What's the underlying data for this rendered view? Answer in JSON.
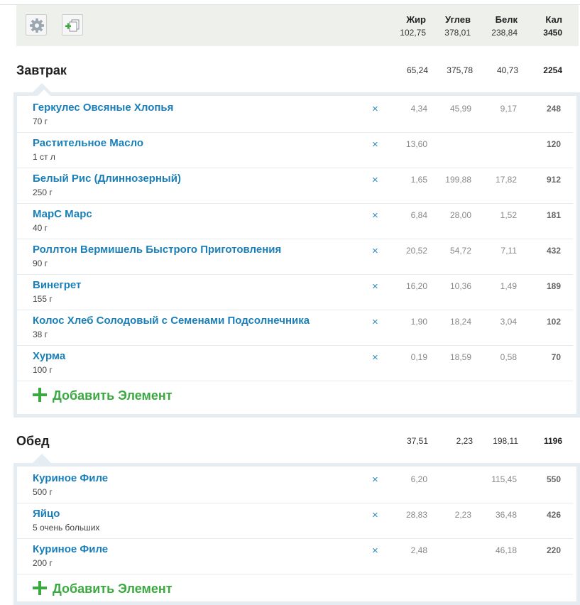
{
  "toolbar": {
    "settings_icon": "gear-icon",
    "copy_icon": "add-copy-icon",
    "columns": [
      {
        "label": "Жир",
        "value": "102,75"
      },
      {
        "label": "Углев",
        "value": "378,01"
      },
      {
        "label": "Белк",
        "value": "238,84"
      },
      {
        "label": "Кал",
        "value": "3450"
      }
    ]
  },
  "meals": [
    {
      "title": "Завтрак",
      "totals": [
        "65,24",
        "375,78",
        "40,73",
        "2254"
      ],
      "items": [
        {
          "name": "Геркулес Овсяные Хлопья",
          "amount": "70 г",
          "fat": "4,34",
          "carb": "45,99",
          "prot": "9,17",
          "kcal": "248"
        },
        {
          "name": "Растительное Масло",
          "amount": "1 ст л",
          "fat": "13,60",
          "carb": "",
          "prot": "",
          "kcal": "120"
        },
        {
          "name": "Белый Рис (Длиннозерный)",
          "amount": "250 г",
          "fat": "1,65",
          "carb": "199,88",
          "prot": "17,82",
          "kcal": "912"
        },
        {
          "name": "МарС Марс",
          "amount": "40 г",
          "fat": "6,84",
          "carb": "28,00",
          "prot": "1,52",
          "kcal": "181"
        },
        {
          "name": "Роллтон Вермишель Быстрого Приготовления",
          "amount": "90 г",
          "fat": "20,52",
          "carb": "54,72",
          "prot": "7,11",
          "kcal": "432"
        },
        {
          "name": "Винегрет",
          "amount": "155 г",
          "fat": "16,20",
          "carb": "10,36",
          "prot": "1,49",
          "kcal": "189"
        },
        {
          "name": "Колос Хлеб Солодовый с Семенами Подсолнечника",
          "amount": "38 г",
          "fat": "1,90",
          "carb": "18,24",
          "prot": "3,04",
          "kcal": "102"
        },
        {
          "name": "Хурма",
          "amount": "100 г",
          "fat": "0,19",
          "carb": "18,59",
          "prot": "0,58",
          "kcal": "70"
        }
      ],
      "add_label": "Добавить Элемент"
    },
    {
      "title": "Обед",
      "totals": [
        "37,51",
        "2,23",
        "198,11",
        "1196"
      ],
      "items": [
        {
          "name": "Куриное Филе",
          "amount": "500 г",
          "fat": "6,20",
          "carb": "",
          "prot": "115,45",
          "kcal": "550"
        },
        {
          "name": "Яйцо",
          "amount": "5 очень больших",
          "fat": "28,83",
          "carb": "2,23",
          "prot": "36,48",
          "kcal": "426"
        },
        {
          "name": "Куриное Филе",
          "amount": "200 г",
          "fat": "2,48",
          "carb": "",
          "prot": "46,18",
          "kcal": "220"
        }
      ],
      "add_label": "Добавить Элемент"
    }
  ],
  "delete_glyph": "×"
}
